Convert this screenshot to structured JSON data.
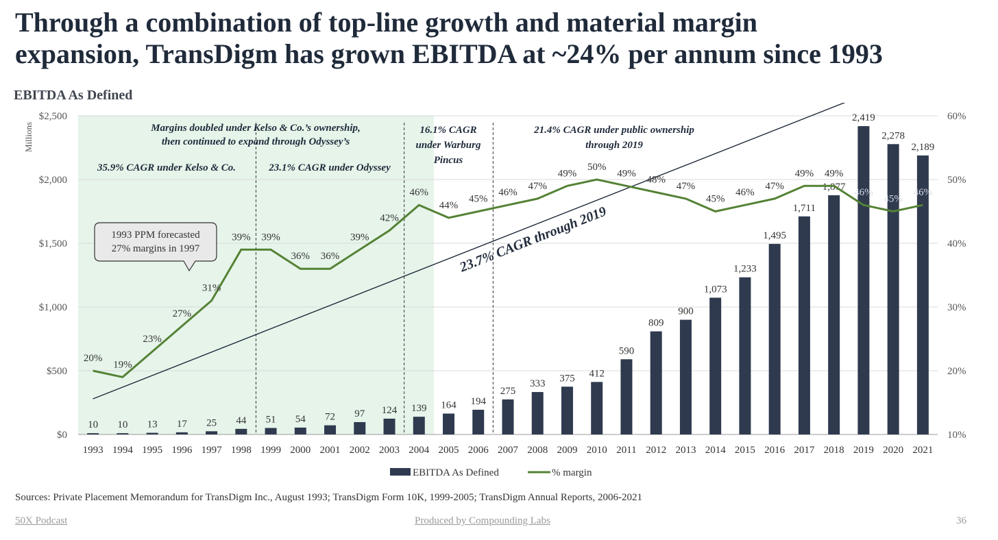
{
  "headline": {
    "line1": "Through a combination of  top-line growth and material margin",
    "line2": "expansion, TransDigm has grown EBITDA at ~24% per annum since 1993"
  },
  "section_title": "EBITDA As Defined",
  "sources": "Sources: Private Placement Memorandum for TransDigm Inc., August 1993; TransDigm Form 10K, 1999-2005; TransDigm Annual Reports, 2006-2021",
  "footer": {
    "left_link": "50X Podcast",
    "center_link": "Produced by Compounding Labs",
    "page_number": "36"
  },
  "colors": {
    "bar": "#2f3a4f",
    "line": "#548235",
    "shade": "#e6f4ea",
    "text": "#1f2a3a"
  },
  "chart_data": {
    "type": "bar",
    "title": "EBITDA As Defined",
    "y_unit_label": "Millions",
    "categories": [
      "1993",
      "1994",
      "1995",
      "1996",
      "1997",
      "1998",
      "1999",
      "2000",
      "2001",
      "2002",
      "2003",
      "2004",
      "2005",
      "2006",
      "2007",
      "2008",
      "2009",
      "2010",
      "2011",
      "2012",
      "2013",
      "2014",
      "2015",
      "2016",
      "2017",
      "2018",
      "2019",
      "2020",
      "2021"
    ],
    "series": [
      {
        "name": "EBITDA As Defined",
        "type": "bar",
        "axis": "left",
        "values": [
          10,
          10,
          13,
          17,
          25,
          44,
          51,
          54,
          72,
          97,
          124,
          139,
          164,
          194,
          275,
          333,
          375,
          412,
          590,
          809,
          900,
          1073,
          1233,
          1495,
          1711,
          1877,
          2419,
          2278,
          2189
        ],
        "labels": [
          "10",
          "10",
          "13",
          "17",
          "25",
          "44",
          "51",
          "54",
          "72",
          "97",
          "124",
          "139",
          "164",
          "194",
          "275",
          "333",
          "375",
          "412",
          "590",
          "809",
          "900",
          "1,073",
          "1,233",
          "1,495",
          "1,711",
          "1,877",
          "2,419",
          "2,278",
          "2,189"
        ]
      },
      {
        "name": "% margin",
        "type": "line",
        "axis": "right",
        "values": [
          20,
          19,
          23,
          27,
          31,
          39,
          39,
          36,
          36,
          39,
          42,
          46,
          44,
          45,
          46,
          47,
          49,
          50,
          49,
          48,
          47,
          45,
          46,
          47,
          49,
          49,
          46,
          45,
          46
        ],
        "labels": [
          "20%",
          "19%",
          "23%",
          "27%",
          "31%",
          "39%",
          "39%",
          "36%",
          "36%",
          "39%",
          "42%",
          "46%",
          "44%",
          "45%",
          "46%",
          "47%",
          "49%",
          "50%",
          "49%",
          "48%",
          "47%",
          "45%",
          "46%",
          "47%",
          "49%",
          "49%",
          "46%",
          "45%",
          "46%"
        ]
      }
    ],
    "left_axis": {
      "ylim": [
        0,
        2500
      ],
      "ticks": [
        0,
        500,
        1000,
        1500,
        2000,
        2500
      ],
      "tick_labels": [
        "$0",
        "$500",
        "$1,000",
        "$1,500",
        "$2,000",
        "$2,500"
      ]
    },
    "right_axis": {
      "ylim": [
        10,
        60
      ],
      "ticks": [
        10,
        20,
        30,
        40,
        50,
        60
      ],
      "tick_labels": [
        "10%",
        "20%",
        "30%",
        "40%",
        "50%",
        "60%"
      ]
    },
    "grid": true,
    "legend": {
      "position": "bottom-center",
      "entries": [
        "EBITDA As Defined",
        "% margin"
      ]
    },
    "shaded_period": {
      "from": "1993",
      "to": "2004"
    },
    "period_dividers": [
      "1998|1999",
      "2003|2004",
      "2006|2007"
    ],
    "annotations": {
      "kelso_header": [
        "Margins doubled under Kelso & Co.’s ownership,",
        "then continued to expand through Odyssey’s"
      ],
      "kelso_cagr": "35.9% CAGR under Kelso & Co.",
      "odyssey_cagr": "23.1% CAGR under Odyssey",
      "warburg": [
        "16.1% CAGR",
        "under Warburg",
        "Pincus"
      ],
      "public": [
        "21.4% CAGR under public ownership",
        "through 2019"
      ],
      "callout": [
        "1993 PPM forecasted",
        "27% margins in 1997"
      ],
      "trend_label": "23.7% CAGR through 2019"
    }
  }
}
